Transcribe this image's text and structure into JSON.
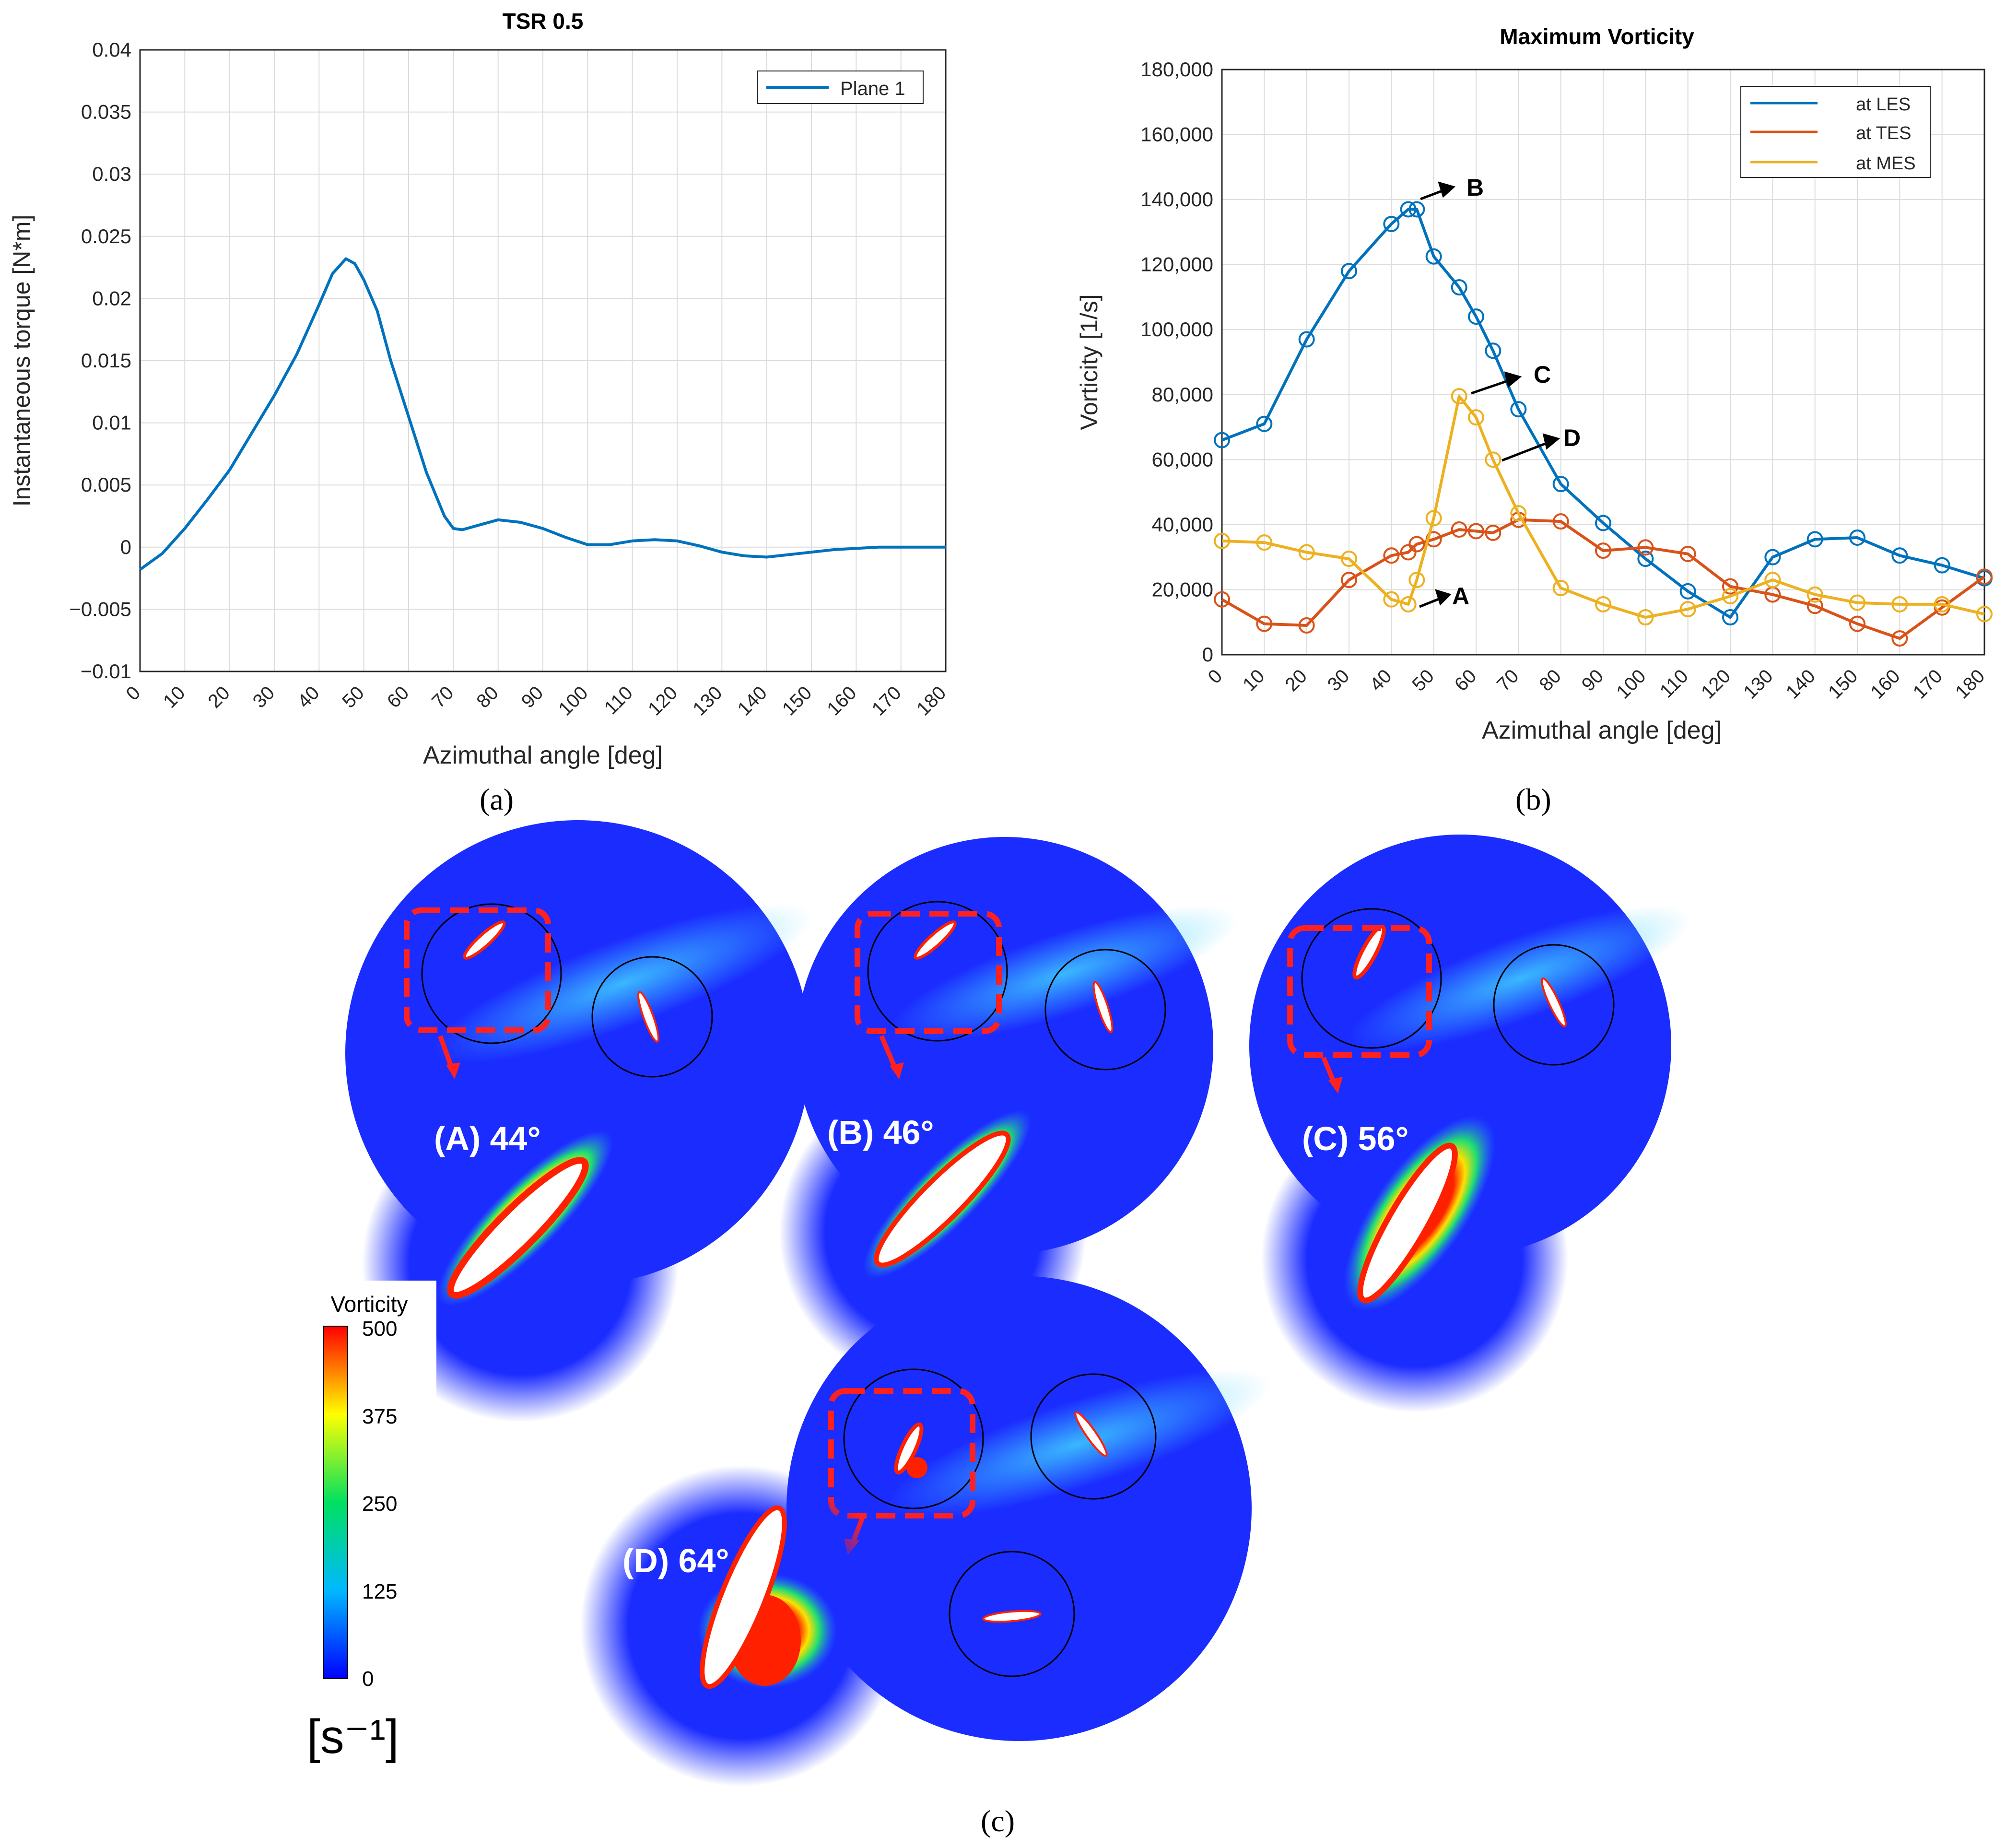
{
  "chart_data": [
    {
      "id": "a",
      "type": "line",
      "title": "TSR 0.5",
      "xlabel": "Azimuthal angle [deg]",
      "ylabel": "Instantaneous torque [N*m]",
      "xlim": [
        0,
        180
      ],
      "ylim": [
        -0.01,
        0.04
      ],
      "xticks": [
        "0",
        "10",
        "20",
        "30",
        "40",
        "50",
        "60",
        "70",
        "80",
        "90",
        "100",
        "110",
        "120",
        "130",
        "140",
        "150",
        "160",
        "170",
        "180"
      ],
      "yticks": [
        "-0.01",
        "-0.005",
        "0",
        "0.005",
        "0.01",
        "0.015",
        "0.02",
        "0.025",
        "0.03",
        "0.035",
        "0.04"
      ],
      "grid": true,
      "legend": "top-right",
      "series": [
        {
          "name": "Plane 1",
          "color": "#0072BD",
          "x": [
            0,
            5,
            10,
            15,
            20,
            25,
            30,
            35,
            40,
            43,
            46,
            48,
            50,
            53,
            56,
            60,
            64,
            68,
            70,
            72,
            75,
            80,
            85,
            90,
            95,
            100,
            105,
            110,
            115,
            120,
            125,
            130,
            135,
            140,
            145,
            150,
            155,
            160,
            165,
            170,
            175,
            180
          ],
          "y": [
            -0.0018,
            -0.0005,
            0.0015,
            0.0038,
            0.0062,
            0.0092,
            0.0122,
            0.0155,
            0.0195,
            0.022,
            0.0232,
            0.0228,
            0.0215,
            0.019,
            0.015,
            0.0105,
            0.006,
            0.0025,
            0.0015,
            0.0014,
            0.0017,
            0.0022,
            0.002,
            0.0015,
            0.0008,
            0.0002,
            0.0002,
            0.0005,
            0.0006,
            0.0005,
            0.0001,
            -0.0004,
            -0.0007,
            -0.0008,
            -0.0006,
            -0.0004,
            -0.0002,
            -0.0001,
            0.0,
            0.0,
            0.0,
            0.0
          ]
        }
      ],
      "caption": "(a)"
    },
    {
      "id": "b",
      "type": "line",
      "title": "Maximum Vorticity",
      "xlabel": "Azimuthal angle [deg]",
      "ylabel": "Vorticity [1/s]",
      "xlim": [
        0,
        180
      ],
      "ylim": [
        0,
        180000
      ],
      "xticks": [
        "0",
        "10",
        "20",
        "30",
        "40",
        "50",
        "60",
        "70",
        "80",
        "90",
        "100",
        "110",
        "120",
        "130",
        "140",
        "150",
        "160",
        "170",
        "180"
      ],
      "yticks": [
        "0",
        "20,000",
        "40,000",
        "60,000",
        "80,000",
        "100,000",
        "120,000",
        "140,000",
        "160,000",
        "180,000"
      ],
      "grid": true,
      "legend": "top-right",
      "markers": "circle",
      "series": [
        {
          "name": "at LES",
          "color": "#0072BD",
          "x": [
            0,
            10,
            20,
            30,
            40,
            44,
            46,
            50,
            56,
            60,
            64,
            70,
            80,
            90,
            100,
            110,
            120,
            130,
            140,
            150,
            160,
            170,
            180
          ],
          "y": [
            66000,
            71000,
            97000,
            118000,
            132500,
            137000,
            137000,
            122500,
            113000,
            104000,
            93500,
            75500,
            52500,
            40500,
            29500,
            19500,
            11500,
            30000,
            35500,
            36000,
            30500,
            27500,
            23500
          ]
        },
        {
          "name": "at TES",
          "color": "#D95319",
          "x": [
            0,
            10,
            20,
            30,
            40,
            44,
            46,
            50,
            56,
            60,
            64,
            70,
            80,
            90,
            100,
            110,
            120,
            130,
            140,
            150,
            160,
            170,
            180
          ],
          "y": [
            17000,
            9500,
            9000,
            23000,
            30500,
            31500,
            34000,
            35500,
            38500,
            38000,
            37500,
            41500,
            41000,
            32000,
            33000,
            31000,
            21000,
            18500,
            15000,
            9500,
            5000,
            14500,
            24000
          ]
        },
        {
          "name": "at MES",
          "color": "#EDB120",
          "x": [
            0,
            10,
            20,
            30,
            40,
            44,
            46,
            50,
            56,
            60,
            64,
            70,
            80,
            90,
            100,
            110,
            120,
            130,
            140,
            150,
            160,
            170,
            180
          ],
          "y": [
            35000,
            34500,
            31500,
            29500,
            17000,
            15500,
            23000,
            42000,
            79500,
            73000,
            60000,
            43500,
            20500,
            15500,
            11500,
            14000,
            18000,
            23000,
            18500,
            16000,
            15500,
            15500,
            12500
          ]
        }
      ],
      "annotations": [
        "A",
        "B",
        "C",
        "D"
      ],
      "caption": "(b)"
    }
  ],
  "panel_c": {
    "caption": "(c)",
    "snapshots": [
      {
        "label": "(A) 44°"
      },
      {
        "label": "(B) 46°"
      },
      {
        "label": "(C) 56°"
      },
      {
        "label": "(D) 64°"
      }
    ],
    "colorbar": {
      "title": "Vorticity",
      "ticks": [
        "500",
        "375",
        "250",
        "125",
        "0"
      ],
      "unit": "[s⁻¹]"
    }
  }
}
